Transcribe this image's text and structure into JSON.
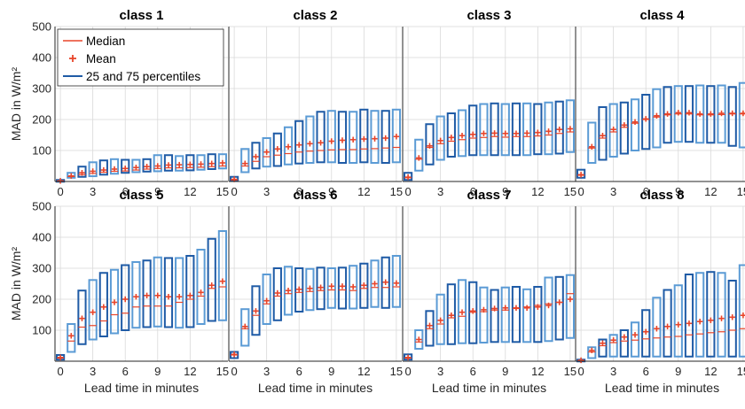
{
  "chart_data": {
    "type": "box",
    "ylabel": "MAD in W/m²",
    "xlabel": "Lead time in minutes",
    "xlim": [
      -0.5,
      15.5
    ],
    "ylim": [
      0,
      500
    ],
    "xticks": [
      0,
      3,
      6,
      9,
      12,
      15
    ],
    "yticks": [
      100,
      200,
      300,
      400,
      500
    ],
    "grid": true,
    "legend": {
      "placement": "top-left",
      "entries": [
        "Median",
        "Mean",
        "25 and 75 percentiles"
      ]
    },
    "colors": {
      "median": "#e8452a",
      "mean": "#e8452a",
      "box_dark": "#1f5ba6",
      "box_light": "#5b9bd5",
      "grid": "#d9d9d9",
      "axis": "#262626"
    },
    "panels": [
      {
        "title": "class 1",
        "x": [
          0,
          1,
          2,
          3,
          4,
          5,
          6,
          7,
          8,
          9,
          10,
          11,
          12,
          13,
          14,
          15
        ],
        "q25": [
          0,
          12,
          15,
          17,
          22,
          25,
          28,
          30,
          32,
          33,
          35,
          35,
          36,
          38,
          40,
          42
        ],
        "q75": [
          5,
          28,
          48,
          62,
          68,
          72,
          70,
          70,
          72,
          85,
          85,
          82,
          85,
          85,
          88,
          88
        ],
        "median": [
          2,
          16,
          22,
          26,
          30,
          33,
          34,
          37,
          40,
          42,
          44,
          44,
          45,
          46,
          48,
          50
        ],
        "mean": [
          2,
          18,
          28,
          33,
          37,
          40,
          42,
          45,
          48,
          50,
          53,
          54,
          55,
          56,
          58,
          60
        ]
      },
      {
        "title": "class 2",
        "x": [
          0,
          1,
          2,
          3,
          4,
          5,
          6,
          7,
          8,
          9,
          10,
          11,
          12,
          13,
          14,
          15
        ],
        "q25": [
          3,
          30,
          42,
          48,
          50,
          55,
          58,
          60,
          62,
          62,
          60,
          60,
          62,
          60,
          60,
          62
        ],
        "q75": [
          15,
          105,
          125,
          140,
          155,
          175,
          195,
          210,
          225,
          228,
          225,
          225,
          232,
          228,
          228,
          232
        ],
        "median": [
          5,
          50,
          65,
          80,
          85,
          90,
          95,
          98,
          100,
          102,
          103,
          103,
          105,
          106,
          108,
          110
        ],
        "mean": [
          7,
          58,
          80,
          95,
          105,
          112,
          118,
          122,
          125,
          130,
          133,
          135,
          137,
          138,
          140,
          145
        ]
      },
      {
        "title": "class 3",
        "x": [
          0,
          1,
          2,
          3,
          4,
          5,
          6,
          7,
          8,
          9,
          10,
          11,
          12,
          13,
          14,
          15
        ],
        "q25": [
          5,
          35,
          55,
          70,
          80,
          82,
          85,
          85,
          85,
          85,
          85,
          85,
          88,
          88,
          90,
          95
        ],
        "q75": [
          28,
          135,
          185,
          210,
          220,
          230,
          245,
          250,
          252,
          250,
          252,
          252,
          250,
          255,
          258,
          262
        ],
        "median": [
          12,
          72,
          110,
          122,
          130,
          135,
          140,
          142,
          145,
          143,
          145,
          145,
          147,
          150,
          155,
          160
        ],
        "mean": [
          14,
          76,
          115,
          132,
          142,
          148,
          152,
          155,
          156,
          155,
          155,
          156,
          158,
          162,
          168,
          170
        ]
      },
      {
        "title": "class 4",
        "x": [
          0,
          1,
          2,
          3,
          4,
          5,
          6,
          7,
          8,
          9,
          10,
          11,
          12,
          13,
          14,
          15
        ],
        "q25": [
          12,
          60,
          70,
          80,
          90,
          100,
          105,
          110,
          125,
          128,
          128,
          125,
          125,
          125,
          115,
          110
        ],
        "q75": [
          38,
          190,
          240,
          250,
          255,
          265,
          280,
          298,
          305,
          308,
          308,
          310,
          308,
          310,
          305,
          318
        ],
        "median": [
          20,
          108,
          140,
          160,
          175,
          188,
          200,
          208,
          215,
          218,
          218,
          215,
          215,
          216,
          218,
          218
        ],
        "mean": [
          22,
          112,
          148,
          168,
          182,
          192,
          202,
          212,
          218,
          222,
          222,
          218,
          218,
          220,
          220,
          220
        ]
      },
      {
        "title": "class 5",
        "x": [
          0,
          1,
          2,
          3,
          4,
          5,
          6,
          7,
          8,
          9,
          10,
          11,
          12,
          13,
          14,
          15
        ],
        "q25": [
          5,
          30,
          55,
          70,
          80,
          90,
          100,
          108,
          110,
          112,
          110,
          108,
          110,
          120,
          130,
          132
        ],
        "q75": [
          20,
          120,
          228,
          262,
          285,
          295,
          310,
          320,
          325,
          335,
          333,
          333,
          340,
          360,
          395,
          420
        ],
        "median": [
          10,
          65,
          110,
          115,
          130,
          150,
          155,
          175,
          178,
          178,
          178,
          190,
          200,
          210,
          235,
          240
        ],
        "mean": [
          12,
          82,
          138,
          158,
          175,
          190,
          200,
          208,
          212,
          212,
          208,
          208,
          212,
          222,
          245,
          258
        ]
      },
      {
        "title": "class 6",
        "x": [
          0,
          1,
          2,
          3,
          4,
          5,
          6,
          7,
          8,
          9,
          10,
          11,
          12,
          13,
          14,
          15
        ],
        "q25": [
          10,
          50,
          85,
          120,
          132,
          150,
          160,
          165,
          168,
          172,
          170,
          170,
          172,
          175,
          172,
          175
        ],
        "q75": [
          30,
          168,
          242,
          280,
          300,
          305,
          300,
          298,
          302,
          300,
          302,
          308,
          315,
          325,
          335,
          340
        ],
        "median": [
          20,
          105,
          148,
          185,
          210,
          218,
          222,
          225,
          228,
          230,
          230,
          228,
          235,
          238,
          238,
          240
        ],
        "mean": [
          22,
          112,
          162,
          195,
          220,
          228,
          232,
          235,
          238,
          242,
          242,
          240,
          245,
          250,
          255,
          252
        ]
      },
      {
        "title": "class 7",
        "x": [
          0,
          1,
          2,
          3,
          4,
          5,
          6,
          7,
          8,
          9,
          10,
          11,
          12,
          13,
          14,
          15
        ],
        "q25": [
          5,
          40,
          50,
          55,
          55,
          58,
          58,
          60,
          62,
          62,
          62,
          62,
          62,
          65,
          70,
          75
        ],
        "q75": [
          22,
          100,
          162,
          215,
          248,
          262,
          255,
          238,
          230,
          238,
          240,
          232,
          240,
          270,
          272,
          278
        ],
        "median": [
          10,
          62,
          105,
          120,
          140,
          145,
          158,
          160,
          165,
          165,
          170,
          175,
          180,
          185,
          190,
          218
        ],
        "mean": [
          12,
          70,
          115,
          132,
          148,
          158,
          162,
          166,
          170,
          172,
          172,
          172,
          175,
          180,
          190,
          200
        ]
      },
      {
        "title": "class 8",
        "x": [
          0,
          1,
          2,
          3,
          4,
          5,
          6,
          7,
          8,
          9,
          10,
          11,
          12,
          13,
          14,
          15
        ],
        "q25": [
          0,
          10,
          15,
          15,
          15,
          15,
          15,
          15,
          15,
          15,
          15,
          15,
          15,
          15,
          15,
          15
        ],
        "q75": [
          5,
          45,
          70,
          85,
          100,
          125,
          165,
          205,
          230,
          245,
          280,
          285,
          288,
          285,
          260,
          310
        ],
        "median": [
          2,
          30,
          50,
          60,
          65,
          68,
          72,
          75,
          78,
          80,
          85,
          88,
          92,
          95,
          100,
          105
        ],
        "mean": [
          3,
          35,
          58,
          68,
          78,
          85,
          95,
          105,
          112,
          118,
          122,
          128,
          132,
          138,
          142,
          148
        ]
      }
    ]
  }
}
